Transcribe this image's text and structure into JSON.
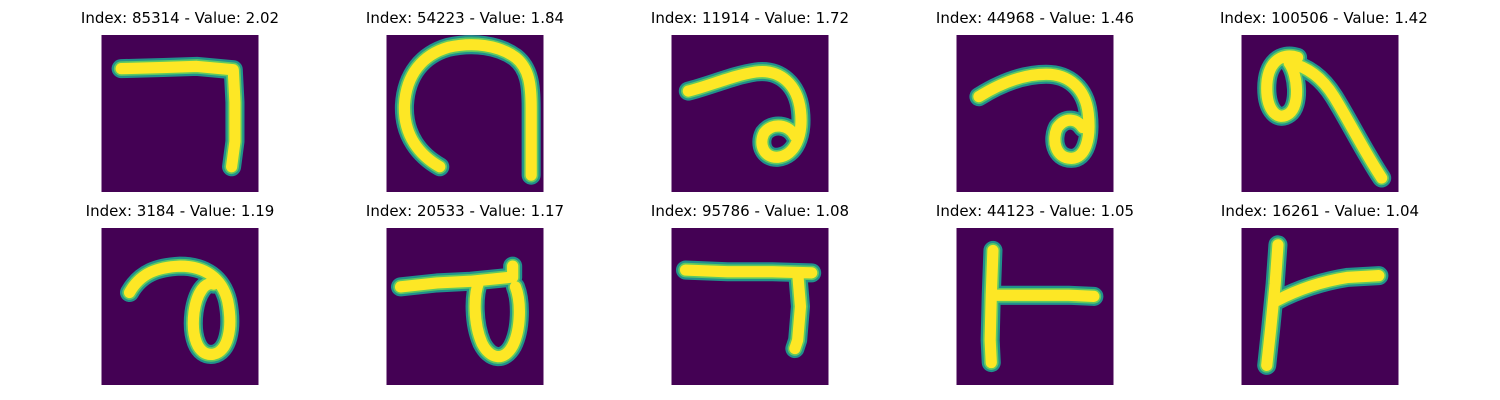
{
  "colors": {
    "background": "#440154",
    "stroke_edge": "#21918c",
    "stroke_mid": "#5ec962",
    "stroke_core": "#fde725"
  },
  "panels": [
    {
      "title": "Index: 85314 - Value: 2.02"
    },
    {
      "title": "Index: 54223 - Value: 1.84"
    },
    {
      "title": "Index: 11914 - Value: 1.72"
    },
    {
      "title": "Index: 44968 - Value: 1.46"
    },
    {
      "title": "Index: 100506 - Value: 1.42"
    },
    {
      "title": "Index: 3184 - Value: 1.19"
    },
    {
      "title": "Index: 20533 - Value: 1.17"
    },
    {
      "title": "Index: 95786 - Value: 1.08"
    },
    {
      "title": "Index: 44123 - Value: 1.05"
    },
    {
      "title": "Index: 16261 - Value: 1.04"
    }
  ]
}
